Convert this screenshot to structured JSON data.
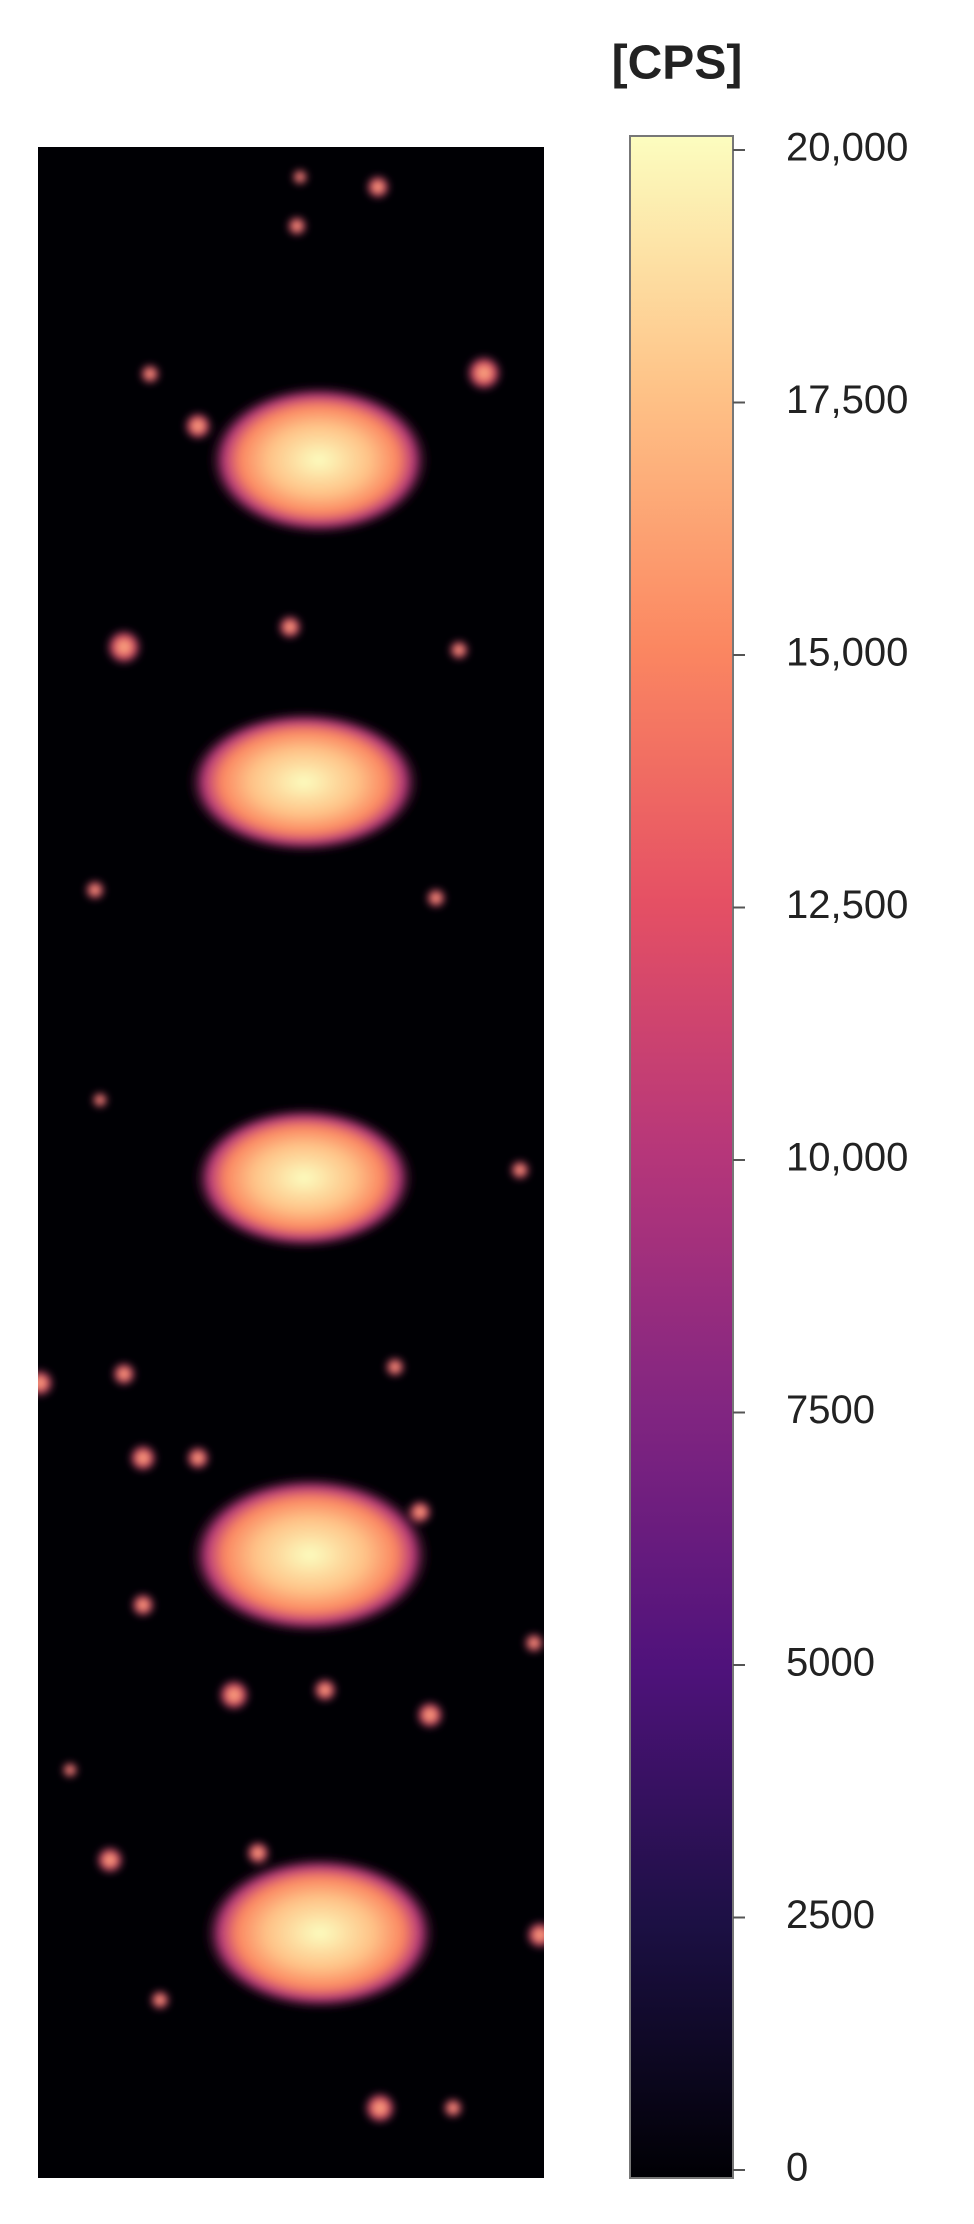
{
  "chart_data": {
    "type": "heatmap",
    "colorbar_label": "[CPS]",
    "ylim": [
      0,
      20000
    ],
    "yticks": [
      0,
      2500,
      5000,
      7500,
      {
        "value": 10000,
        "label": "10,000"
      },
      {
        "value": 12500,
        "label": "12,500"
      },
      {
        "value": 15000,
        "label": "15,000"
      },
      {
        "value": 17500,
        "label": "17,500"
      },
      {
        "value": 20000,
        "label": "20,000"
      }
    ],
    "colormap": [
      "#000004",
      "#1c1044",
      "#4f127b",
      "#812581",
      "#b5367a",
      "#e55064",
      "#fb8761",
      "#fec287",
      "#fcfdbf"
    ]
  }
}
